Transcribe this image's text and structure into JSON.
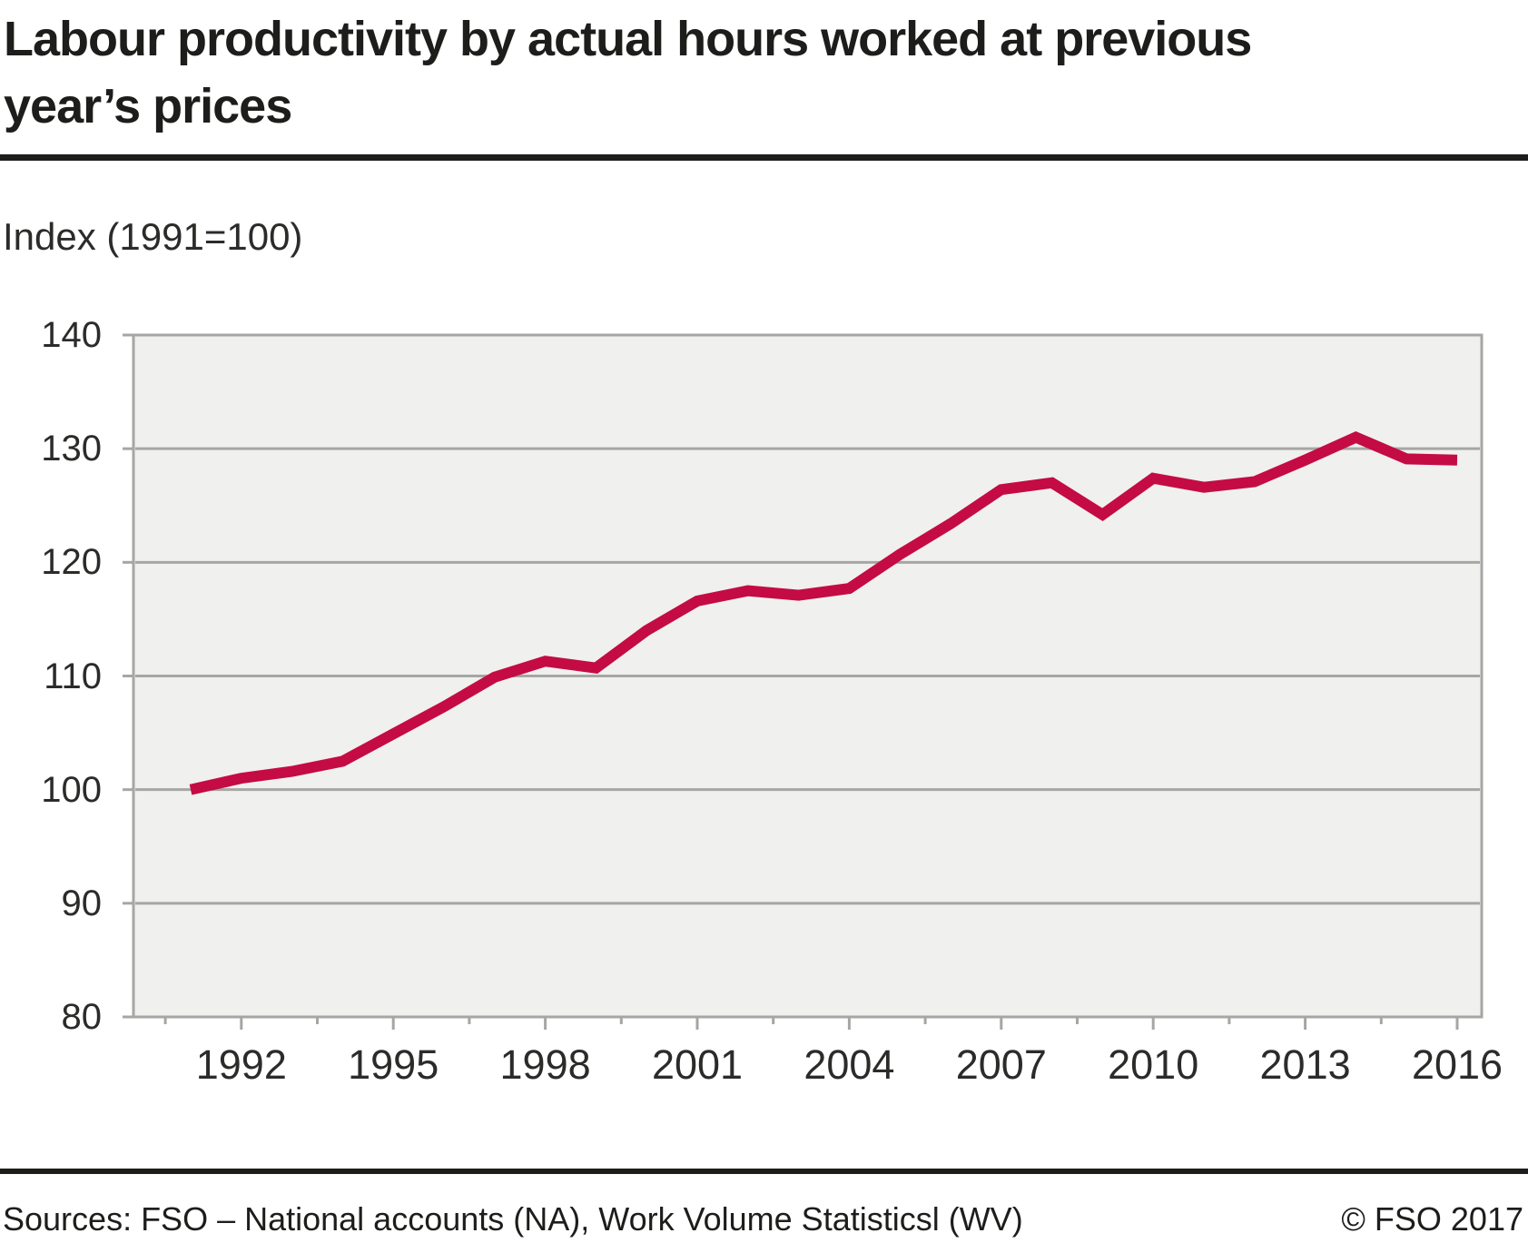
{
  "header": {
    "title_line1": "Labour productivity by actual hours worked at previous",
    "title_line2": "year’s prices",
    "subtitle": "Index (1991=100)"
  },
  "footer": {
    "sources": "Sources: FSO – National accounts (NA), Work Volume Statisticsl (WV)",
    "copyright": "© FSO 2017"
  },
  "colors": {
    "line": "#c40b44",
    "plot_bg": "#f0f0ee",
    "grid": "#a6a6a4",
    "axis_text": "#2b2b29",
    "rule": "#1d1d1b"
  },
  "chart_data": {
    "type": "line",
    "title": "Labour productivity by actual hours worked at previous year’s prices",
    "xlabel": "",
    "ylabel": "Index (1991=100)",
    "x": [
      1991,
      1992,
      1993,
      1994,
      1995,
      1996,
      1997,
      1998,
      1999,
      2000,
      2001,
      2002,
      2003,
      2004,
      2005,
      2006,
      2007,
      2008,
      2009,
      2010,
      2011,
      2012,
      2013,
      2014,
      2015,
      2016
    ],
    "series": [
      {
        "name": "Labour productivity",
        "values": [
          100,
          101,
          101.6,
          102.5,
          104.9,
          107.3,
          109.9,
          111.3,
          110.7,
          114,
          116.6,
          117.5,
          117.1,
          117.7,
          120.7,
          123.4,
          126.4,
          127,
          124.2,
          127.4,
          126.6,
          127.1,
          129,
          131,
          129.1,
          129
        ]
      }
    ],
    "ylim": [
      80,
      140
    ],
    "yticks": [
      80,
      90,
      100,
      110,
      120,
      130,
      140
    ],
    "xtick_labels": [
      1992,
      1995,
      1998,
      2001,
      2004,
      2007,
      2010,
      2013,
      2016
    ],
    "minor_xtick_step_years": 1.5,
    "grid": true,
    "legend": "none"
  }
}
